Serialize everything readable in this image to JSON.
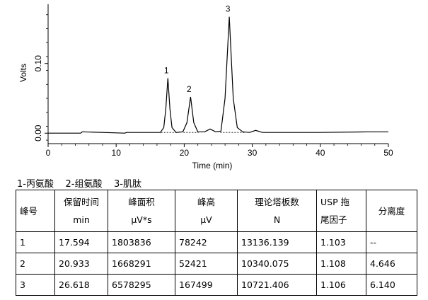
{
  "chart_data": {
    "type": "line",
    "xlabel": "Time (min)",
    "ylabel": "Volts",
    "xlim": [
      0,
      50
    ],
    "ylim": [
      -0.015,
      0.185
    ],
    "xticks": [
      0,
      10,
      20,
      30,
      40,
      50
    ],
    "yticks": [
      0.0,
      0.1
    ],
    "ytick_labels": [
      "0.00",
      "0.10"
    ],
    "grid": false,
    "series": [
      {
        "values_note": "",
        "x": [
          0,
          4.8,
          5.0,
          11.3,
          11.5,
          16.5,
          17.0,
          17.3,
          17.594,
          17.9,
          18.2,
          18.8,
          19.8,
          20.4,
          20.933,
          21.4,
          22.0,
          23.0,
          23.8,
          24.6,
          25.4,
          26.0,
          26.618,
          27.2,
          27.8,
          28.6,
          29.6,
          30.5,
          31.5,
          40,
          47.5,
          50
        ],
        "y": [
          0.0,
          0.0,
          0.002,
          0.0,
          0.001,
          0.001,
          0.008,
          0.035,
          0.079,
          0.035,
          0.008,
          0.001,
          0.002,
          0.015,
          0.052,
          0.015,
          0.002,
          0.002,
          0.006,
          0.002,
          0.003,
          0.05,
          0.167,
          0.05,
          0.008,
          0.002,
          0.001,
          0.004,
          0.001,
          0.001,
          0.002,
          0.002
        ]
      }
    ],
    "annotations": [
      {
        "text": "1",
        "x": 17.594,
        "y": 0.079
      },
      {
        "text": "2",
        "x": 20.933,
        "y": 0.052
      },
      {
        "text": "3",
        "x": 26.618,
        "y": 0.167
      }
    ]
  },
  "legend_text": "1-丙氨酸    2-组氨酸    3-肌肽",
  "table": {
    "headers": [
      {
        "l1": "峰号",
        "l2": ""
      },
      {
        "l1": "保留时间",
        "l2": "min"
      },
      {
        "l1": "峰面积",
        "l2": "μV*s"
      },
      {
        "l1": "峰高",
        "l2": "μV"
      },
      {
        "l1": "理论塔板数",
        "l2": "N"
      },
      {
        "l1": "USP 拖",
        "l2": "尾因子"
      },
      {
        "l1": "分离度",
        "l2": ""
      }
    ],
    "rows": [
      [
        "1",
        "17.594",
        "1803836",
        "78242",
        "13136.139",
        "1.103",
        "--"
      ],
      [
        "2",
        "20.933",
        "1668291",
        "52421",
        "10340.075",
        "1.108",
        "4.646"
      ],
      [
        "3",
        "26.618",
        "6578295",
        "167499",
        "10721.406",
        "1.106",
        "6.140"
      ]
    ]
  }
}
